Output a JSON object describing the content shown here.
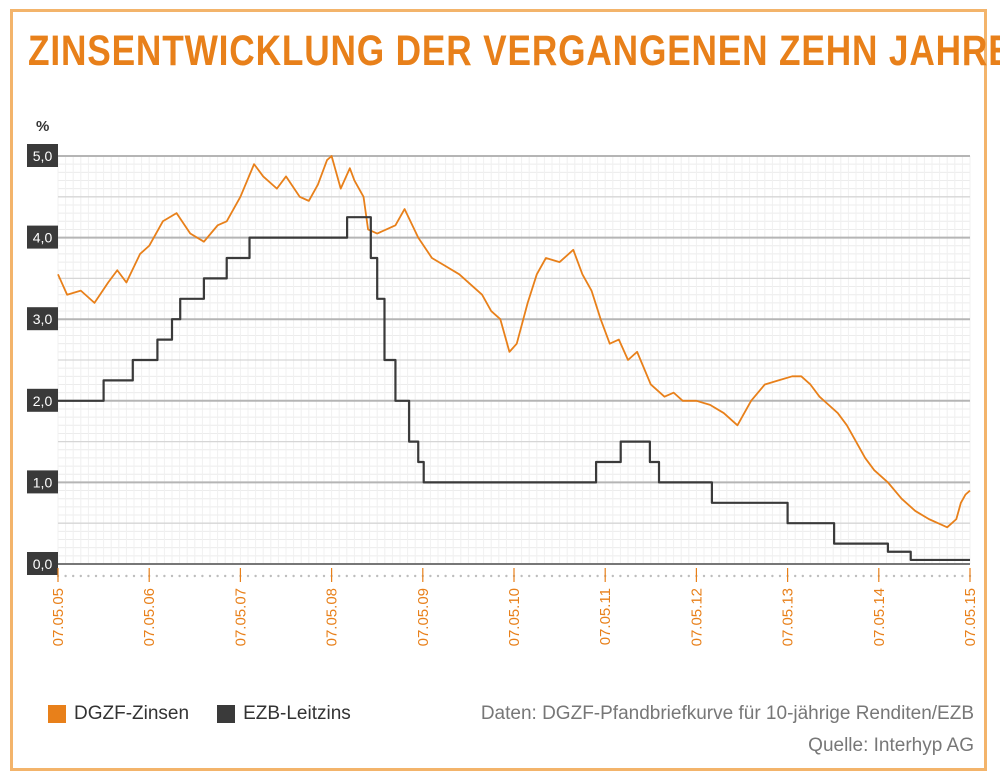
{
  "title": "ZINSENTWICKLUNG DER VERGANGENEN ZEHN JAHRE",
  "source_line1": "Daten: DGZF-Pfandbriefkurve für 10-jährige Renditen/EZB",
  "source_line2": "Quelle: Interhyp AG",
  "colors": {
    "dgzf": "#e8801a",
    "ezb": "#3a3a3a",
    "accent": "#e8801a"
  },
  "chart_data": {
    "type": "line",
    "title": "ZINSENTWICKLUNG DER VERGANGENEN ZEHN JAHRE",
    "ylabel": "%",
    "ylim": [
      0,
      5
    ],
    "xlim": [
      2005.35,
      2015.35
    ],
    "y_ticks": [
      "0,0",
      "1,0",
      "2,0",
      "3,0",
      "4,0",
      "5,0"
    ],
    "x_ticks": [
      "07.05.05",
      "07.05.06",
      "07.05.07",
      "07.05.08",
      "07.05.09",
      "07.05.10",
      "07.05.11",
      "07.05.12",
      "07.05.13",
      "07.05.14",
      "07.05.15"
    ],
    "grid": true,
    "legend": "bottom-left",
    "series": [
      {
        "name": "DGZF-Zinsen",
        "kind": "line",
        "x": [
          2005.35,
          2005.45,
          2005.6,
          2005.75,
          2005.9,
          2006.0,
          2006.1,
          2006.25,
          2006.35,
          2006.5,
          2006.65,
          2006.8,
          2006.95,
          2007.1,
          2007.2,
          2007.35,
          2007.5,
          2007.6,
          2007.75,
          2007.85,
          2008.0,
          2008.1,
          2008.2,
          2008.3,
          2008.35,
          2008.45,
          2008.55,
          2008.6,
          2008.7,
          2008.75,
          2008.85,
          2008.95,
          2009.05,
          2009.15,
          2009.3,
          2009.45,
          2009.6,
          2009.75,
          2009.9,
          2010.0,
          2010.1,
          2010.2,
          2010.3,
          2010.38,
          2010.5,
          2010.6,
          2010.7,
          2010.85,
          2011.0,
          2011.1,
          2011.2,
          2011.3,
          2011.4,
          2011.5,
          2011.6,
          2011.7,
          2011.85,
          2012.0,
          2012.1,
          2012.2,
          2012.35,
          2012.5,
          2012.65,
          2012.8,
          2012.95,
          2013.1,
          2013.25,
          2013.4,
          2013.5,
          2013.6,
          2013.7,
          2013.8,
          2013.9,
          2014.0,
          2014.1,
          2014.2,
          2014.3,
          2014.45,
          2014.6,
          2014.75,
          2014.9,
          2015.0,
          2015.1,
          2015.2,
          2015.25,
          2015.3,
          2015.35
        ],
        "y": [
          3.55,
          3.3,
          3.35,
          3.2,
          3.45,
          3.6,
          3.45,
          3.8,
          3.9,
          4.2,
          4.3,
          4.05,
          3.95,
          4.15,
          4.2,
          4.5,
          4.9,
          4.75,
          4.6,
          4.75,
          4.5,
          4.45,
          4.65,
          4.95,
          5.0,
          4.6,
          4.85,
          4.7,
          4.5,
          4.1,
          4.05,
          4.1,
          4.15,
          4.35,
          4.0,
          3.75,
          3.65,
          3.55,
          3.4,
          3.3,
          3.1,
          3.0,
          2.6,
          2.7,
          3.2,
          3.55,
          3.75,
          3.7,
          3.85,
          3.55,
          3.35,
          3.0,
          2.7,
          2.75,
          2.5,
          2.6,
          2.2,
          2.05,
          2.1,
          2.0,
          2.0,
          1.95,
          1.85,
          1.7,
          2.0,
          2.2,
          2.25,
          2.3,
          2.3,
          2.2,
          2.05,
          1.95,
          1.85,
          1.7,
          1.5,
          1.3,
          1.15,
          1.0,
          0.8,
          0.65,
          0.55,
          0.5,
          0.45,
          0.55,
          0.75,
          0.85,
          0.9
        ]
      },
      {
        "name": "EZB-Leitzins",
        "kind": "step",
        "x": [
          2005.35,
          2005.85,
          2006.17,
          2006.44,
          2006.6,
          2006.69,
          2006.95,
          2007.2,
          2007.45,
          2008.52,
          2008.78,
          2008.85,
          2008.93,
          2009.05,
          2009.2,
          2009.3,
          2009.36,
          2009.45,
          2011.25,
          2011.52,
          2011.84,
          2011.94,
          2012.52,
          2013.35,
          2013.86,
          2014.45,
          2014.7,
          2015.35
        ],
        "y": [
          2.0,
          2.25,
          2.5,
          2.75,
          3.0,
          3.25,
          3.5,
          3.75,
          4.0,
          4.25,
          3.75,
          3.25,
          2.5,
          2.0,
          1.5,
          1.25,
          1.0,
          1.0,
          1.25,
          1.5,
          1.25,
          1.0,
          0.75,
          0.5,
          0.25,
          0.15,
          0.05,
          0.05
        ]
      }
    ]
  }
}
